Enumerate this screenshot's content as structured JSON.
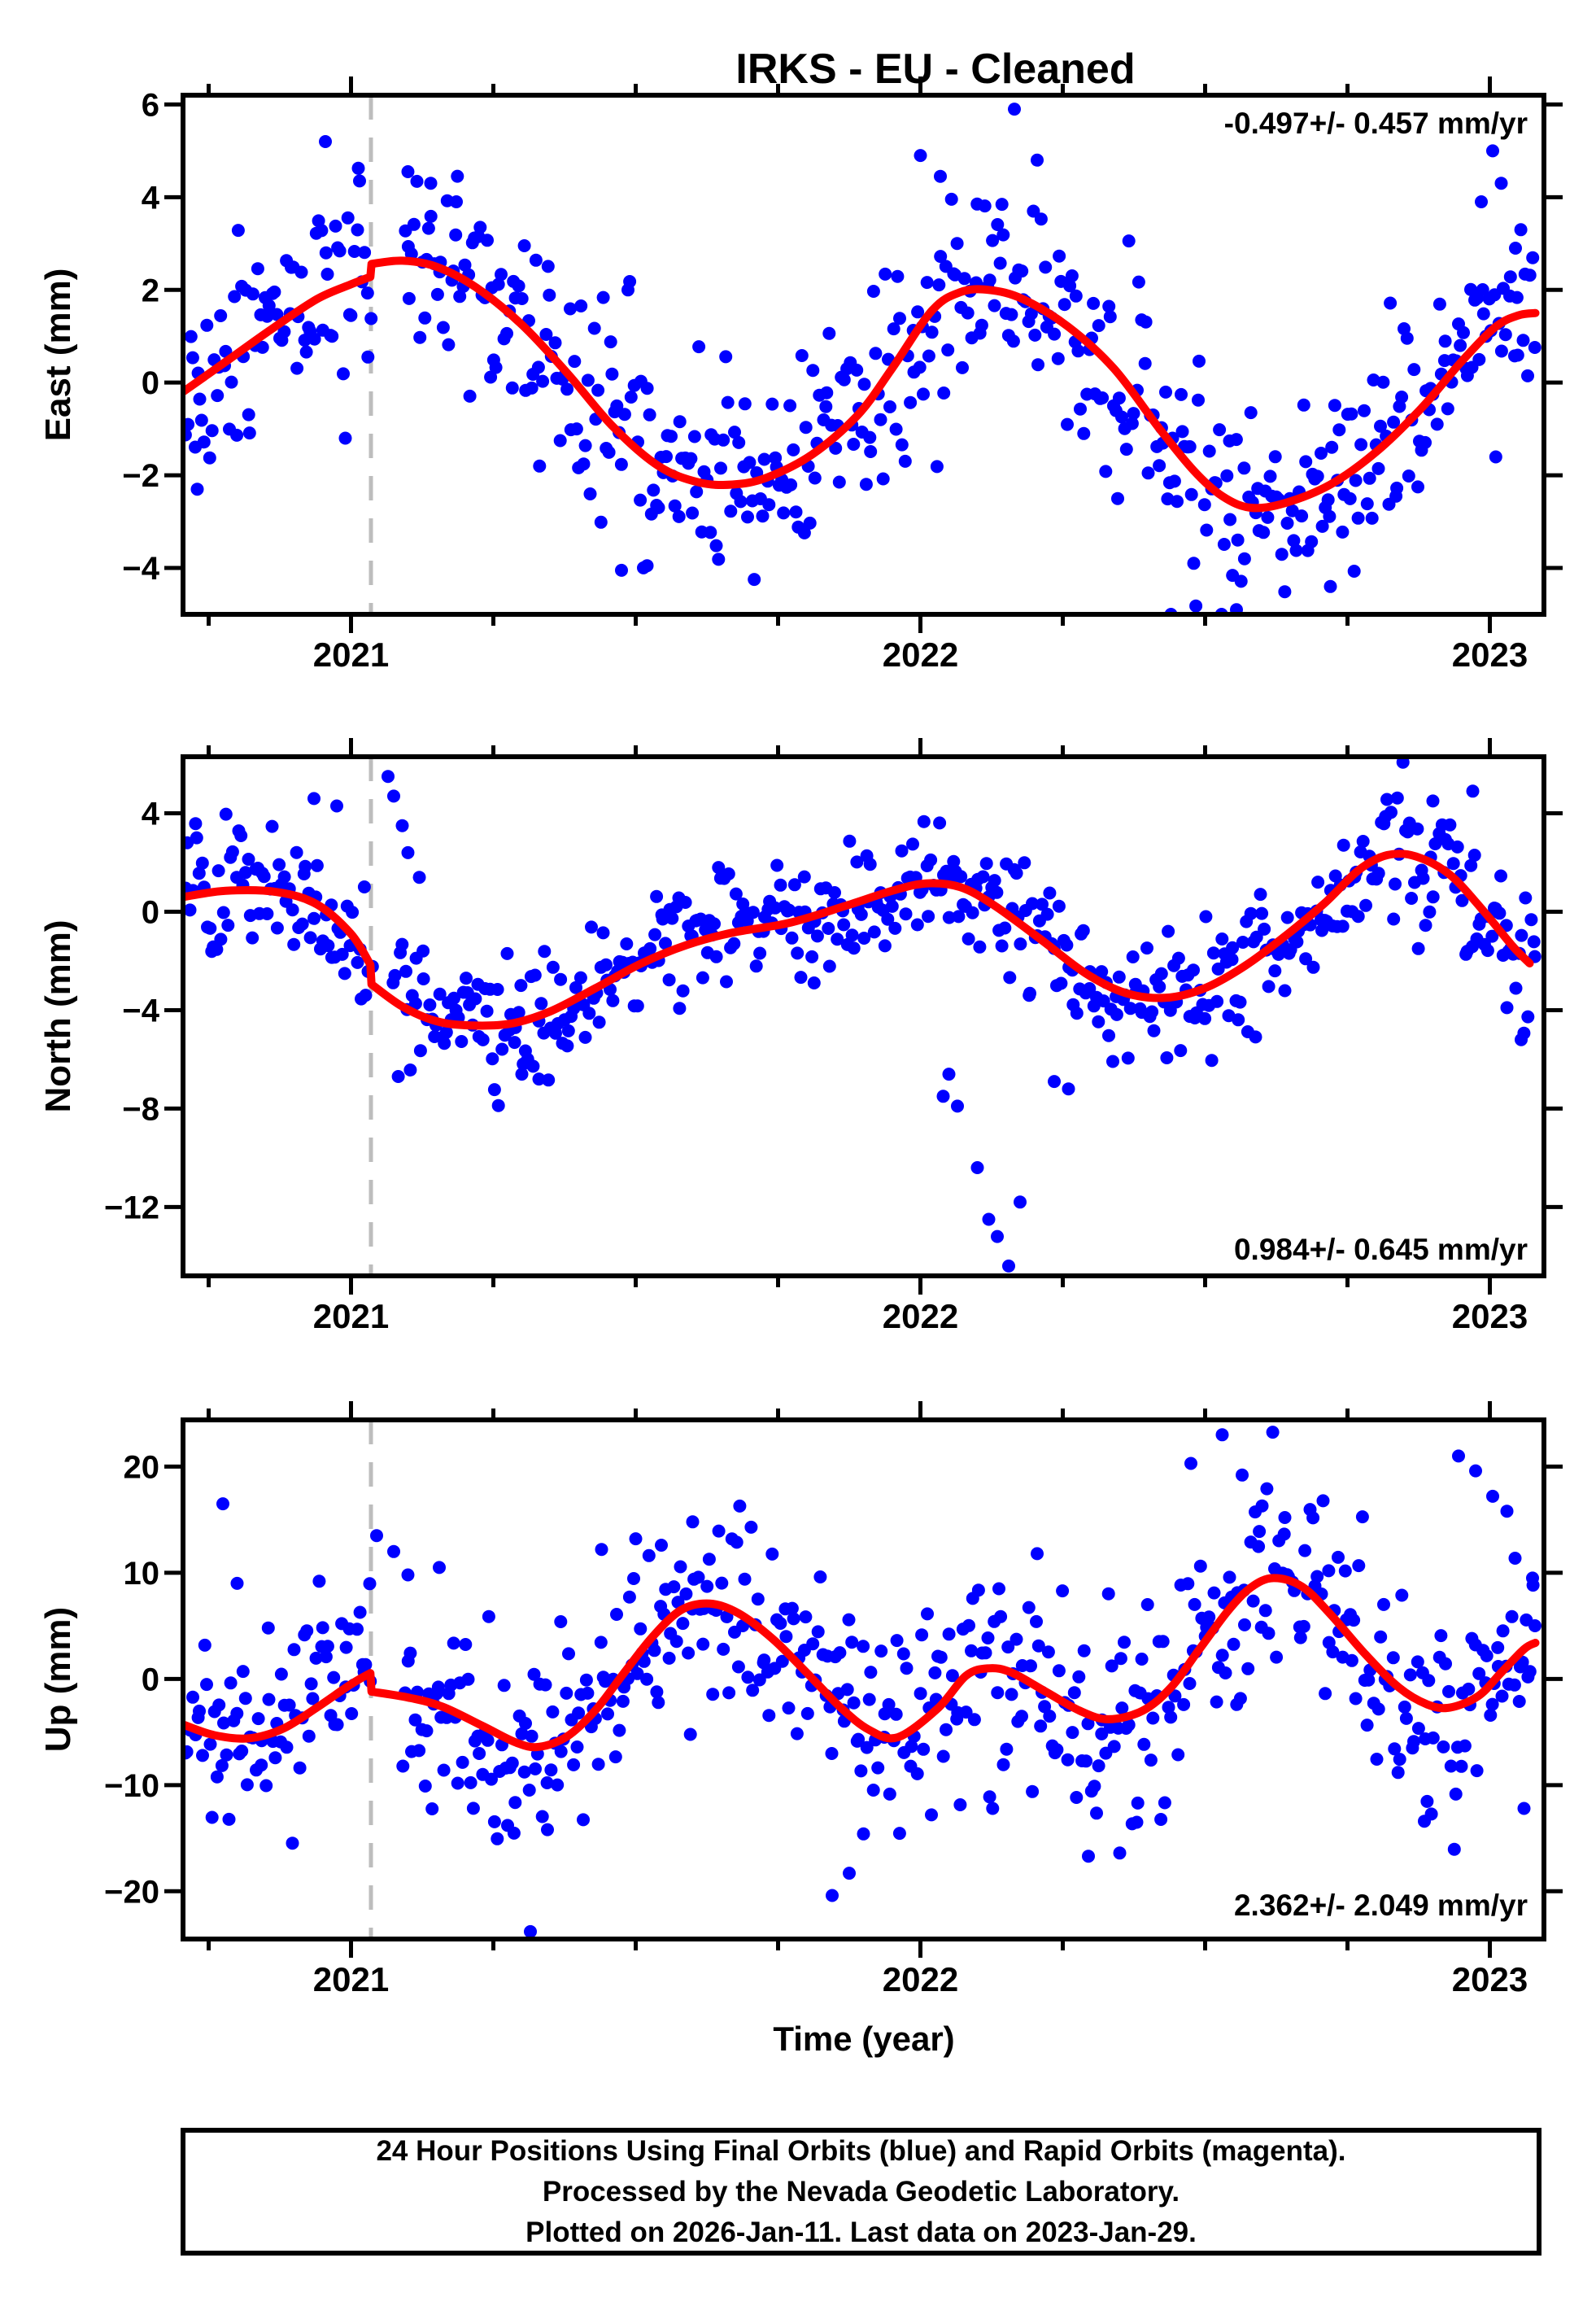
{
  "chart_data": {
    "type": "scatter",
    "title": "IRKS  - EU - Cleaned",
    "xlabel": "Time (year)",
    "colors": {
      "points": "#0000ff",
      "model_curve": "#ff0000",
      "break_line": "#bdbdbd",
      "frame": "#000000"
    },
    "style": {
      "point_radius": 8,
      "curve_width": 10,
      "frame_width": 6
    },
    "x_axis": {
      "min": 2020.705,
      "max": 2023.095,
      "major_ticks": [
        2021,
        2022,
        2023
      ],
      "minor_step": 0.25,
      "equipment_break_time": 2021.035
    },
    "panels": [
      {
        "id": "east",
        "ylabel": "East (mm)",
        "annotation": "-0.497+/- 0.457 mm/yr",
        "annotation_corner": "top-right",
        "ymin": -5.0,
        "ymax": 6.2,
        "ytick_min": -4,
        "ytick_max": 6,
        "ytick_step": 2,
        "curve_pre_break": [
          [
            2020.705,
            -0.2
          ],
          [
            2020.78,
            0.45
          ],
          [
            2020.86,
            1.15
          ],
          [
            2020.94,
            1.8
          ],
          [
            2021.0,
            2.12
          ],
          [
            2021.034,
            2.28
          ]
        ],
        "curve_post_break": [
          [
            2021.036,
            2.56
          ],
          [
            2021.09,
            2.63
          ],
          [
            2021.15,
            2.5
          ],
          [
            2021.22,
            2.05
          ],
          [
            2021.3,
            1.25
          ],
          [
            2021.38,
            0.2
          ],
          [
            2021.46,
            -0.95
          ],
          [
            2021.54,
            -1.8
          ],
          [
            2021.61,
            -2.15
          ],
          [
            2021.67,
            -2.2
          ],
          [
            2021.73,
            -2.05
          ],
          [
            2021.81,
            -1.55
          ],
          [
            2021.89,
            -0.7
          ],
          [
            2021.95,
            0.3
          ],
          [
            2022.02,
            1.55
          ],
          [
            2022.07,
            1.95
          ],
          [
            2022.12,
            2.0
          ],
          [
            2022.18,
            1.8
          ],
          [
            2022.26,
            1.2
          ],
          [
            2022.34,
            0.3
          ],
          [
            2022.42,
            -1.0
          ],
          [
            2022.48,
            -1.9
          ],
          [
            2022.53,
            -2.45
          ],
          [
            2022.58,
            -2.7
          ],
          [
            2022.64,
            -2.6
          ],
          [
            2022.72,
            -2.2
          ],
          [
            2022.8,
            -1.5
          ],
          [
            2022.88,
            -0.55
          ],
          [
            2022.95,
            0.45
          ],
          [
            2023.01,
            1.2
          ],
          [
            2023.05,
            1.45
          ],
          [
            2023.08,
            1.5
          ]
        ],
        "scatter_model": {
          "n": 560,
          "sigma": 1.1,
          "seed": 11,
          "gap": [
            2021.038,
            2021.092
          ]
        },
        "outliers": [
          [
            2020.73,
            -2.3
          ],
          [
            2020.955,
            5.2
          ],
          [
            2021.015,
            4.35
          ],
          [
            2021.1,
            4.55
          ],
          [
            2021.14,
            4.3
          ],
          [
            2021.185,
            3.9
          ],
          [
            2021.475,
            -4.05
          ],
          [
            2021.52,
            -3.95
          ],
          [
            2022.0,
            4.9
          ],
          [
            2022.035,
            4.45
          ],
          [
            2022.165,
            5.9
          ],
          [
            2022.205,
            4.8
          ],
          [
            2022.44,
            -5.0
          ],
          [
            2022.48,
            -3.9
          ],
          [
            2022.555,
            -4.9
          ],
          [
            2022.72,
            -4.4
          ],
          [
            2022.985,
            3.9
          ],
          [
            2023.005,
            5.0
          ],
          [
            2023.02,
            4.3
          ],
          [
            2023.045,
            2.9
          ]
        ]
      },
      {
        "id": "north",
        "ylabel": "North (mm)",
        "annotation": "0.984+/- 0.645 mm/yr",
        "annotation_corner": "bottom-right",
        "ymin": -14.8,
        "ymax": 6.3,
        "ytick_min": -12,
        "ytick_max": 4,
        "ytick_step": 4,
        "curve_pre_break": [
          [
            2020.705,
            0.6
          ],
          [
            2020.78,
            0.85
          ],
          [
            2020.87,
            0.8
          ],
          [
            2020.94,
            0.3
          ],
          [
            2021.0,
            -0.9
          ],
          [
            2021.034,
            -2.15
          ]
        ],
        "curve_post_break": [
          [
            2021.036,
            -2.95
          ],
          [
            2021.09,
            -3.85
          ],
          [
            2021.15,
            -4.45
          ],
          [
            2021.21,
            -4.62
          ],
          [
            2021.28,
            -4.55
          ],
          [
            2021.35,
            -4.05
          ],
          [
            2021.43,
            -3.1
          ],
          [
            2021.51,
            -2.1
          ],
          [
            2021.59,
            -1.35
          ],
          [
            2021.67,
            -0.85
          ],
          [
            2021.77,
            -0.45
          ],
          [
            2021.87,
            0.25
          ],
          [
            2021.95,
            0.85
          ],
          [
            2022.01,
            1.15
          ],
          [
            2022.07,
            1.0
          ],
          [
            2022.13,
            0.25
          ],
          [
            2022.21,
            -1.1
          ],
          [
            2022.29,
            -2.5
          ],
          [
            2022.36,
            -3.3
          ],
          [
            2022.43,
            -3.5
          ],
          [
            2022.5,
            -3.1
          ],
          [
            2022.57,
            -2.2
          ],
          [
            2022.64,
            -1.0
          ],
          [
            2022.71,
            0.35
          ],
          [
            2022.77,
            1.7
          ],
          [
            2022.82,
            2.3
          ],
          [
            2022.87,
            2.25
          ],
          [
            2022.93,
            1.5
          ],
          [
            2022.99,
            0.0
          ],
          [
            2023.04,
            -1.4
          ],
          [
            2023.07,
            -2.1
          ]
        ],
        "scatter_model": {
          "n": 560,
          "sigma": 1.3,
          "seed": 22,
          "gap": [
            2021.038,
            2021.072
          ]
        },
        "outliers": [
          [
            2020.935,
            4.6
          ],
          [
            2020.975,
            4.3
          ],
          [
            2021.065,
            5.5
          ],
          [
            2021.075,
            4.7
          ],
          [
            2021.09,
            3.5
          ],
          [
            2021.1,
            2.4
          ],
          [
            2021.12,
            1.4
          ],
          [
            2021.3,
            -6.6
          ],
          [
            2021.33,
            -6.8
          ],
          [
            2022.04,
            -7.5
          ],
          [
            2022.05,
            -6.6
          ],
          [
            2022.065,
            -7.9
          ],
          [
            2022.1,
            -10.4
          ],
          [
            2022.12,
            -12.5
          ],
          [
            2022.135,
            -13.2
          ],
          [
            2022.155,
            -14.4
          ],
          [
            2022.175,
            -11.8
          ],
          [
            2022.235,
            -6.9
          ],
          [
            2022.26,
            -7.2
          ],
          [
            2022.9,
            4.5
          ],
          [
            2022.97,
            4.9
          ],
          [
            2023.03,
            -3.9
          ],
          [
            2023.055,
            -5.2
          ]
        ]
      },
      {
        "id": "up",
        "ylabel": "Up (mm)",
        "annotation": "2.362+/- 2.049 mm/yr",
        "annotation_corner": "bottom-right",
        "ymin": -24.5,
        "ymax": 24.4,
        "ytick_min": -20,
        "ytick_max": 20,
        "ytick_step": 10,
        "curve_pre_break": [
          [
            2020.705,
            -4.3
          ],
          [
            2020.76,
            -5.3
          ],
          [
            2020.82,
            -5.6
          ],
          [
            2020.88,
            -4.7
          ],
          [
            2020.94,
            -2.7
          ],
          [
            2021.0,
            -0.5
          ],
          [
            2021.034,
            0.55
          ]
        ],
        "curve_post_break": [
          [
            2021.036,
            -1.2
          ],
          [
            2021.1,
            -1.75
          ],
          [
            2021.16,
            -2.6
          ],
          [
            2021.23,
            -4.4
          ],
          [
            2021.29,
            -6.0
          ],
          [
            2021.33,
            -6.4
          ],
          [
            2021.38,
            -5.4
          ],
          [
            2021.43,
            -2.9
          ],
          [
            2021.48,
            0.6
          ],
          [
            2021.53,
            4.0
          ],
          [
            2021.58,
            6.5
          ],
          [
            2021.63,
            7.1
          ],
          [
            2021.68,
            6.2
          ],
          [
            2021.74,
            3.8
          ],
          [
            2021.8,
            0.6
          ],
          [
            2021.86,
            -2.7
          ],
          [
            2021.91,
            -4.8
          ],
          [
            2021.96,
            -5.5
          ],
          [
            2022.03,
            -2.8
          ],
          [
            2022.08,
            0.3
          ],
          [
            2022.12,
            1.0
          ],
          [
            2022.16,
            0.6
          ],
          [
            2022.22,
            -1.2
          ],
          [
            2022.28,
            -3.0
          ],
          [
            2022.33,
            -3.8
          ],
          [
            2022.39,
            -3.0
          ],
          [
            2022.44,
            -0.8
          ],
          [
            2022.49,
            2.8
          ],
          [
            2022.54,
            6.4
          ],
          [
            2022.58,
            8.6
          ],
          [
            2022.62,
            9.5
          ],
          [
            2022.67,
            8.7
          ],
          [
            2022.72,
            6.1
          ],
          [
            2022.78,
            2.4
          ],
          [
            2022.84,
            -0.8
          ],
          [
            2022.89,
            -2.4
          ],
          [
            2022.93,
            -2.7
          ],
          [
            2022.98,
            -1.6
          ],
          [
            2023.02,
            0.6
          ],
          [
            2023.06,
            2.8
          ],
          [
            2023.08,
            3.4
          ]
        ],
        "scatter_model": {
          "n": 560,
          "sigma": 4.6,
          "seed": 33,
          "gap": [
            2021.038,
            2021.085
          ]
        },
        "outliers": [
          [
            2020.775,
            16.5
          ],
          [
            2020.8,
            9.0
          ],
          [
            2021.045,
            13.5
          ],
          [
            2021.075,
            12.0
          ],
          [
            2021.1,
            9.8
          ],
          [
            2021.155,
            10.5
          ],
          [
            2021.275,
            -13.8
          ],
          [
            2021.315,
            -23.8
          ],
          [
            2021.345,
            -14.2
          ],
          [
            2021.44,
            12.2
          ],
          [
            2021.5,
            13.2
          ],
          [
            2021.545,
            12.6
          ],
          [
            2021.6,
            14.8
          ],
          [
            2021.845,
            -20.4
          ],
          [
            2021.875,
            -18.3
          ],
          [
            2021.9,
            -14.6
          ],
          [
            2022.205,
            11.8
          ],
          [
            2022.295,
            -16.7
          ],
          [
            2022.35,
            -16.4
          ],
          [
            2022.38,
            -13.5
          ],
          [
            2022.475,
            20.3
          ],
          [
            2022.53,
            23.0
          ],
          [
            2022.565,
            19.2
          ],
          [
            2022.6,
            16.3
          ],
          [
            2022.64,
            15.2
          ],
          [
            2022.885,
            -13.4
          ],
          [
            2022.945,
            21.0
          ],
          [
            2022.975,
            19.6
          ],
          [
            2023.005,
            17.2
          ],
          [
            2023.03,
            15.8
          ],
          [
            2023.06,
            -12.2
          ],
          [
            2023.075,
            9.5
          ]
        ]
      }
    ],
    "footer": {
      "line1": "24 Hour Positions Using Final Orbits (blue) and Rapid Orbits (magenta).",
      "line2": "Processed by the Nevada Geodetic Laboratory.",
      "line3": "Plotted on 2026-Jan-11. Last data on 2023-Jan-29."
    }
  }
}
